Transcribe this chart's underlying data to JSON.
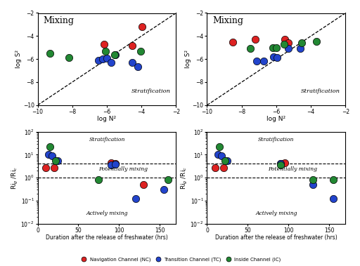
{
  "top_left": {
    "title": "Mixing",
    "stratification_label": "Stratification",
    "xlabel": "log N²",
    "ylabel": "log S²",
    "xlim": [
      -10,
      -2
    ],
    "ylim": [
      -10,
      -2
    ],
    "red_points": [
      [
        -6.15,
        -4.7
      ],
      [
        -4.55,
        -4.85
      ],
      [
        -3.95,
        -3.2
      ]
    ],
    "blue_points": [
      [
        -6.5,
        -6.1
      ],
      [
        -6.25,
        -6.0
      ],
      [
        -6.0,
        -5.95
      ],
      [
        -5.75,
        -6.3
      ],
      [
        -5.5,
        -5.65
      ],
      [
        -4.55,
        -6.3
      ],
      [
        -4.2,
        -6.65
      ]
    ],
    "green_points": [
      [
        -9.3,
        -5.5
      ],
      [
        -8.2,
        -5.85
      ],
      [
        -6.1,
        -5.3
      ],
      [
        -5.55,
        -5.6
      ],
      [
        -4.05,
        -5.35
      ]
    ]
  },
  "top_right": {
    "title": "Mixing",
    "stratification_label": "Stratification",
    "xlabel": "log N²",
    "ylabel": "log S²",
    "xlim": [
      -10,
      -2
    ],
    "ylim": [
      -10,
      -2
    ],
    "red_points": [
      [
        -8.5,
        -4.55
      ],
      [
        -7.2,
        -4.3
      ],
      [
        -5.5,
        -4.3
      ],
      [
        -5.3,
        -4.6
      ]
    ],
    "blue_points": [
      [
        -7.15,
        -6.2
      ],
      [
        -6.75,
        -6.2
      ],
      [
        -6.15,
        -5.8
      ],
      [
        -5.95,
        -5.85
      ],
      [
        -5.3,
        -5.05
      ],
      [
        -4.6,
        -5.1
      ]
    ],
    "green_points": [
      [
        -7.5,
        -5.1
      ],
      [
        -6.2,
        -5.0
      ],
      [
        -6.0,
        -5.0
      ],
      [
        -5.55,
        -4.7
      ],
      [
        -4.55,
        -4.6
      ],
      [
        -3.7,
        -4.45
      ]
    ]
  },
  "bottom_left": {
    "xlabel": "Duration after the release of freshwater (hrs)",
    "ylabel": "Ri$_g$ /Ri$_c$",
    "xlim": [
      0,
      170
    ],
    "ymin": 0.01,
    "ymax": 100,
    "hline1": 4.0,
    "hline2": 1.0,
    "stratification_label": "Stratification",
    "potentially_label": "Potentially mixing",
    "actively_label": "Actively mixing",
    "red_points": [
      [
        10,
        2.8
      ],
      [
        20,
        2.8
      ],
      [
        90,
        4.5
      ],
      [
        95,
        4.0
      ],
      [
        130,
        0.5
      ]
    ],
    "blue_points": [
      [
        13,
        10.0
      ],
      [
        18,
        9.0
      ],
      [
        25,
        5.5
      ],
      [
        90,
        3.5
      ],
      [
        95,
        3.8
      ],
      [
        120,
        0.12
      ],
      [
        155,
        0.3
      ]
    ],
    "green_points": [
      [
        15,
        22.0
      ],
      [
        22,
        5.5
      ],
      [
        75,
        0.8
      ],
      [
        160,
        0.8
      ]
    ]
  },
  "bottom_right": {
    "xlabel": "Duration after the release of freshwater (hrs)",
    "ylabel": "Ri$_g$ /Ri$_c$",
    "xlim": [
      0,
      170
    ],
    "ymin": 0.01,
    "ymax": 100,
    "hline1": 4.0,
    "hline2": 1.0,
    "stratification_label": "Stratification",
    "potentially_label": "Potentially mixing",
    "actively_label": "Actively mixing",
    "red_points": [
      [
        10,
        2.8
      ],
      [
        20,
        2.8
      ],
      [
        90,
        4.0
      ],
      [
        95,
        4.5
      ]
    ],
    "blue_points": [
      [
        13,
        10.0
      ],
      [
        18,
        9.0
      ],
      [
        25,
        5.5
      ],
      [
        90,
        4.0
      ],
      [
        130,
        0.5
      ],
      [
        155,
        0.12
      ]
    ],
    "green_points": [
      [
        15,
        22.0
      ],
      [
        22,
        5.5
      ],
      [
        90,
        3.5
      ],
      [
        130,
        0.8
      ],
      [
        155,
        0.8
      ]
    ]
  },
  "legend": {
    "red_label": "Navigation Channel (NC)",
    "blue_label": "Transition Channel (TC)",
    "green_label": "Inside Channel (IC)"
  },
  "colors": {
    "red": "#dd2222",
    "blue": "#2244cc",
    "green": "#228833"
  },
  "marker_size": 55,
  "edgecolor": "black",
  "edgewidth": 0.5
}
